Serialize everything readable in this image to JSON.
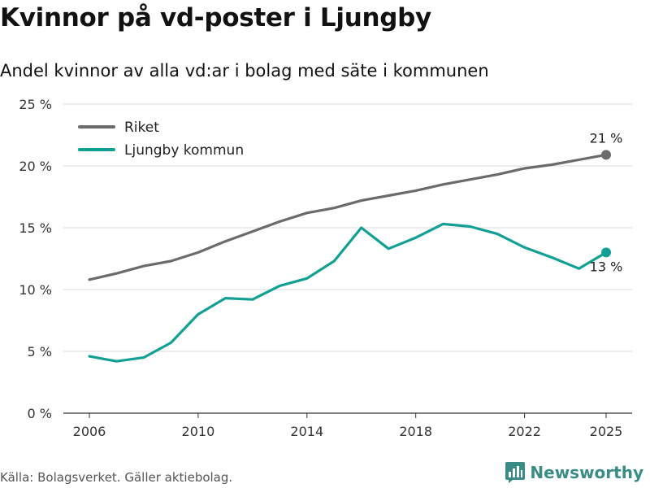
{
  "title": "Kvinnor på vd-poster i Ljungby",
  "subtitle": "Andel kvinnor av alla vd:ar i bolag med säte i kommunen",
  "source": "Källa: Bolagsverket. Gäller aktiebolag.",
  "brand": {
    "name": "Newsworthy",
    "icon": "newsworthy-logo-icon",
    "color": "#3a8c86"
  },
  "chart_data": {
    "type": "line",
    "x": [
      2006,
      2007,
      2008,
      2009,
      2010,
      2011,
      2012,
      2013,
      2014,
      2015,
      2016,
      2017,
      2018,
      2019,
      2020,
      2021,
      2022,
      2023,
      2024,
      2025
    ],
    "series": [
      {
        "name": "Riket",
        "color": "#6b6b6b",
        "values": [
          10.8,
          11.3,
          11.9,
          12.3,
          13.0,
          13.9,
          14.7,
          15.5,
          16.2,
          16.6,
          17.2,
          17.6,
          18.0,
          18.5,
          18.9,
          19.3,
          19.8,
          20.1,
          20.5,
          20.9
        ],
        "end_label": "21 %"
      },
      {
        "name": "Ljungby kommun",
        "color": "#12a095",
        "values": [
          4.6,
          4.2,
          4.5,
          5.7,
          8.0,
          9.3,
          9.2,
          10.3,
          10.9,
          12.3,
          15.0,
          13.3,
          14.2,
          15.3,
          15.1,
          14.5,
          13.4,
          12.6,
          11.7,
          13.0
        ],
        "end_label": "13 %"
      }
    ],
    "xticks": [
      2006,
      2010,
      2014,
      2018,
      2022,
      2025
    ],
    "xtick_labels": [
      "2006",
      "2010",
      "2014",
      "2018",
      "2022",
      "2025"
    ],
    "yticks": [
      0,
      5,
      10,
      15,
      20,
      25
    ],
    "ytick_labels": [
      "0 %",
      "5 %",
      "10 %",
      "15 %",
      "20 %",
      "25 %"
    ],
    "xlim": [
      2006,
      2025
    ],
    "ylim": [
      0,
      25
    ],
    "grid": true,
    "legend": "top-left",
    "xlabel": "",
    "ylabel": ""
  }
}
